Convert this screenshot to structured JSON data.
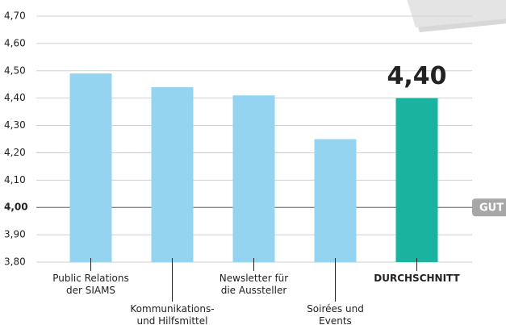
{
  "chart_data": {
    "type": "bar",
    "categories": [
      "Public Relations\nder SIAMS",
      "Kommunikations-\nund Hilfsmittel",
      "Newsletter für\ndie Aussteller",
      "Soirées und\nEvents",
      "DURCHSCHNITT"
    ],
    "values": [
      4.49,
      4.44,
      4.41,
      4.25,
      4.4
    ],
    "value_labels": [
      null,
      null,
      null,
      null,
      "4,40"
    ],
    "colors": [
      "#95d4f1",
      "#95d4f1",
      "#95d4f1",
      "#95d4f1",
      "#19b3a0"
    ],
    "ylim": [
      3.8,
      4.7
    ],
    "yticks": [
      {
        "value": 3.8,
        "label": "3,80"
      },
      {
        "value": 3.9,
        "label": "3,90"
      },
      {
        "value": 4.0,
        "label": "4,00"
      },
      {
        "value": 4.1,
        "label": "4,10"
      },
      {
        "value": 4.2,
        "label": "4,20"
      },
      {
        "value": 4.3,
        "label": "4,30"
      },
      {
        "value": 4.4,
        "label": "4,40"
      },
      {
        "value": 4.5,
        "label": "4,50"
      },
      {
        "value": 4.6,
        "label": "4,60"
      },
      {
        "value": 4.7,
        "label": "4,70"
      }
    ],
    "grid": true,
    "reference_line": 4.0,
    "annotation": "GUT"
  }
}
